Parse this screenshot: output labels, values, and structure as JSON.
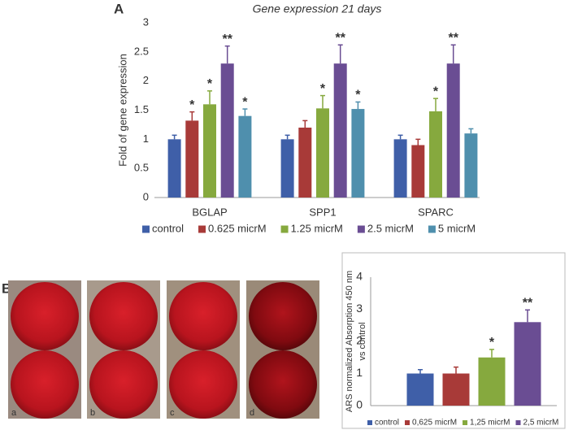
{
  "panel_labels": [
    "A",
    "B"
  ],
  "photo_labels": [
    "a",
    "b",
    "c",
    "d"
  ],
  "chart_data": [
    {
      "type": "bar",
      "title": "Gene expression 21 days",
      "ylabel": "Fold of gene expression",
      "categories": [
        "BGLAP",
        "SPP1",
        "SPARC"
      ],
      "ylim": [
        0,
        3
      ],
      "yticks": [
        0,
        0.5,
        1,
        1.5,
        2,
        2.5,
        3
      ],
      "grid": false,
      "legend": "bottom",
      "series": [
        {
          "name": "control",
          "color": "#3f5fa8",
          "values": [
            1.0,
            1.0,
            1.0
          ],
          "errors": [
            0.07,
            0.07,
            0.07
          ],
          "significance": [
            null,
            null,
            null
          ]
        },
        {
          "name": "0.625 micrM",
          "color": "#a83a38",
          "values": [
            1.32,
            1.2,
            0.9
          ],
          "errors": [
            0.15,
            0.12,
            0.1
          ],
          "significance": [
            "*",
            null,
            null
          ]
        },
        {
          "name": "1.25 micrM",
          "color": "#86a93e",
          "values": [
            1.6,
            1.53,
            1.48
          ],
          "errors": [
            0.23,
            0.22,
            0.22
          ],
          "significance": [
            "*",
            "*",
            "*"
          ]
        },
        {
          "name": "2.5 micrM",
          "color": "#6a4d93",
          "values": [
            2.3,
            2.3,
            2.3
          ],
          "errors": [
            0.3,
            0.32,
            0.32
          ],
          "significance": [
            "**",
            "**",
            "**"
          ]
        },
        {
          "name": "5 micrM",
          "color": "#4f8fad",
          "values": [
            1.4,
            1.52,
            1.1
          ],
          "errors": [
            0.12,
            0.12,
            0.08
          ],
          "significance": [
            "*",
            "*",
            null
          ]
        }
      ]
    },
    {
      "type": "bar",
      "ylabel_lines": [
        "ARS normalized Absorption 450 nm",
        "vs control"
      ],
      "categories": [
        null
      ],
      "ylim": [
        0,
        4
      ],
      "yticks": [
        0,
        1,
        2,
        3,
        4
      ],
      "grid": false,
      "legend": "bottom",
      "series": [
        {
          "name": "control",
          "color": "#3f5fa8",
          "values": [
            1.0
          ],
          "errors": [
            0.12
          ],
          "significance": [
            null
          ]
        },
        {
          "name": "0,625 micrM",
          "color": "#a83a38",
          "values": [
            1.0
          ],
          "errors": [
            0.2
          ],
          "significance": [
            null
          ]
        },
        {
          "name": "1,25 micrM",
          "color": "#86a93e",
          "values": [
            1.5
          ],
          "errors": [
            0.25
          ],
          "significance": [
            "*"
          ]
        },
        {
          "name": "2,5 micrM",
          "color": "#6a4d93",
          "values": [
            2.6
          ],
          "errors": [
            0.38
          ],
          "significance": [
            "**"
          ]
        }
      ]
    }
  ]
}
